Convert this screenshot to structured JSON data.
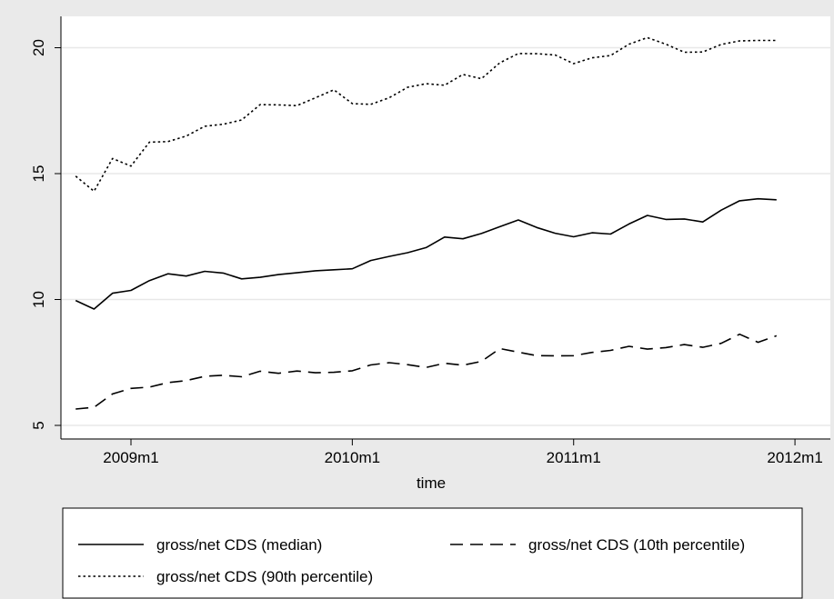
{
  "chart_data": {
    "type": "line",
    "title": "",
    "xlabel": "time",
    "ylabel": "",
    "x_ticks": [
      "2009m1",
      "2010m1",
      "2011m1",
      "2012m1"
    ],
    "y_ticks": [
      5,
      10,
      15,
      20
    ],
    "xlim": [
      "2008m9",
      "2012m1"
    ],
    "ylim": [
      5,
      21
    ],
    "grid": "horizontal",
    "legend_position": "bottom",
    "x": [
      "2008m10",
      "2008m11",
      "2008m12",
      "2009m1",
      "2009m2",
      "2009m3",
      "2009m4",
      "2009m5",
      "2009m6",
      "2009m7",
      "2009m8",
      "2009m9",
      "2009m10",
      "2009m11",
      "2009m12",
      "2010m1",
      "2010m2",
      "2010m3",
      "2010m4",
      "2010m5",
      "2010m6",
      "2010m7",
      "2010m8",
      "2010m9",
      "2010m10",
      "2010m11",
      "2010m12",
      "2011m1",
      "2011m2",
      "2011m3",
      "2011m4",
      "2011m5",
      "2011m6",
      "2011m7",
      "2011m8",
      "2011m9",
      "2011m10",
      "2011m11",
      "2011m12"
    ],
    "series": [
      {
        "name": "gross/net CDS (median)",
        "style": "solid",
        "color": "#000000",
        "values": [
          9.96,
          9.62,
          10.25,
          10.36,
          10.75,
          11.02,
          10.93,
          11.12,
          11.05,
          10.82,
          10.88,
          10.99,
          11.06,
          11.14,
          11.18,
          11.22,
          11.55,
          11.71,
          11.86,
          12.06,
          12.48,
          12.41,
          12.62,
          12.89,
          13.16,
          12.86,
          12.63,
          12.49,
          12.65,
          12.6,
          13.0,
          13.34,
          13.18,
          13.2,
          13.08,
          13.55,
          13.92,
          14.0,
          13.96
        ]
      },
      {
        "name": "gross/net CDS (10th percentile)",
        "style": "dashed",
        "color": "#000000",
        "values": [
          5.65,
          5.72,
          6.25,
          6.47,
          6.52,
          6.7,
          6.78,
          6.95,
          6.99,
          6.93,
          7.15,
          7.07,
          7.16,
          7.09,
          7.11,
          7.17,
          7.4,
          7.49,
          7.41,
          7.3,
          7.47,
          7.39,
          7.54,
          8.05,
          7.91,
          7.77,
          7.76,
          7.77,
          7.9,
          7.98,
          8.14,
          8.03,
          8.09,
          8.21,
          8.1,
          8.26,
          8.62,
          8.3,
          8.56
        ]
      },
      {
        "name": "gross/net CDS (90th percentile)",
        "style": "dotted",
        "color": "#000000",
        "values": [
          14.9,
          14.3,
          15.6,
          15.3,
          16.25,
          16.27,
          16.49,
          16.88,
          16.96,
          17.13,
          17.74,
          17.73,
          17.7,
          18.01,
          18.33,
          17.78,
          17.75,
          18.01,
          18.43,
          18.57,
          18.51,
          18.94,
          18.77,
          19.4,
          19.77,
          19.76,
          19.71,
          19.37,
          19.6,
          19.69,
          20.14,
          20.4,
          20.14,
          19.82,
          19.83,
          20.13,
          20.27,
          20.29,
          20.29
        ]
      }
    ]
  }
}
